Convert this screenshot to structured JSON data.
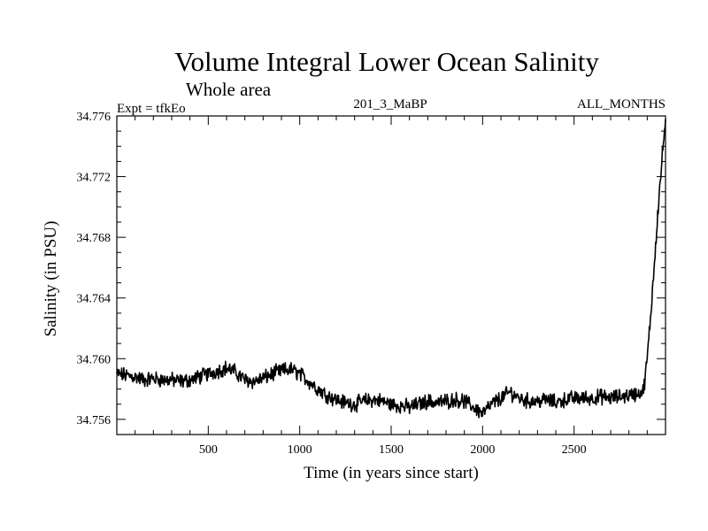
{
  "chart_data": {
    "type": "line",
    "title": "Volume Integral Lower Ocean Salinity",
    "subtitle": "Whole area",
    "experiment": "Expt = tfkEo",
    "run_label": "201_3_MaBP",
    "period_label": "ALL_MONTHS",
    "xlabel": "Time (in years since start)",
    "ylabel": "Salinity (in PSU)",
    "xlim": [
      0,
      3000
    ],
    "ylim": [
      34.755,
      34.776
    ],
    "x_ticks": [
      500,
      1000,
      1500,
      2000,
      2500
    ],
    "x_tick_labels": [
      "500",
      "1000",
      "1500",
      "2000",
      "2500"
    ],
    "y_ticks": [
      34.756,
      34.76,
      34.764,
      34.768,
      34.772,
      34.776
    ],
    "y_tick_labels": [
      "34.756",
      "34.760",
      "34.764",
      "34.768",
      "34.772",
      "34.776"
    ],
    "grid": false,
    "legend": "none",
    "series": [
      {
        "color": "#000000",
        "x": [
          0,
          50,
          100,
          150,
          200,
          250,
          300,
          350,
          400,
          450,
          500,
          550,
          600,
          650,
          700,
          750,
          800,
          850,
          900,
          950,
          1000,
          1050,
          1100,
          1150,
          1200,
          1250,
          1300,
          1350,
          1400,
          1450,
          1500,
          1550,
          1600,
          1650,
          1700,
          1750,
          1800,
          1850,
          1900,
          1950,
          2000,
          2050,
          2100,
          2150,
          2200,
          2250,
          2300,
          2350,
          2400,
          2450,
          2500,
          2550,
          2600,
          2650,
          2700,
          2750,
          2800,
          2850,
          2880,
          2900,
          2920,
          2940,
          2960,
          2980,
          3000
        ],
        "y": [
          34.759,
          34.7589,
          34.7588,
          34.7586,
          34.7587,
          34.7586,
          34.7586,
          34.7585,
          34.7586,
          34.7588,
          34.759,
          34.7592,
          34.7594,
          34.7591,
          34.7586,
          34.7585,
          34.7587,
          34.759,
          34.7592,
          34.7593,
          34.759,
          34.7585,
          34.758,
          34.7576,
          34.7573,
          34.7571,
          34.757,
          34.7572,
          34.7573,
          34.7572,
          34.757,
          34.7569,
          34.7568,
          34.757,
          34.7572,
          34.7571,
          34.7572,
          34.7573,
          34.7572,
          34.7568,
          34.7564,
          34.757,
          34.7574,
          34.7578,
          34.7574,
          34.7572,
          34.7572,
          34.7573,
          34.7571,
          34.7573,
          34.7574,
          34.7574,
          34.7574,
          34.7575,
          34.7574,
          34.7575,
          34.7576,
          34.7577,
          34.7579,
          34.76,
          34.763,
          34.7665,
          34.77,
          34.773,
          34.7758
        ]
      }
    ]
  }
}
